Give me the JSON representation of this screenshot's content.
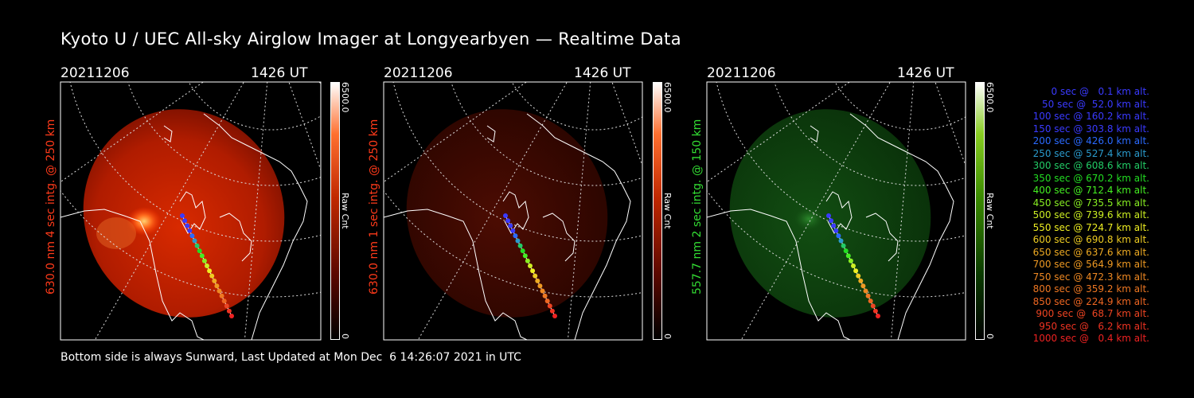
{
  "title": "Kyoto U / UEC All-sky Airglow Imager at Longyearbyen — Realtime Data",
  "footer": "Bottom side is always Sunward, Last Updated at Mon Dec  6 14:26:07 2021 in UTC",
  "panels": [
    {
      "date": "20211206",
      "time": "1426 UT",
      "ylabel": "630.0 nm  4 sec intg. @ 250 km",
      "ylabel_color": "#ff3a1a",
      "cbar_max": "6500.0",
      "cbar_min": "0",
      "cbar_label": "Raw Cnt",
      "cbar_color": "#ff5010",
      "glow_color": "#c42000",
      "glow_opacity": 0.88
    },
    {
      "date": "20211206",
      "time": "1426 UT",
      "ylabel": "630.0 nm  1 sec intg. @ 250 km",
      "ylabel_color": "#ff3a1a",
      "cbar_max": "6500.0",
      "cbar_min": "0",
      "cbar_label": "Raw Cnt",
      "cbar_color": "#ff5010",
      "glow_color": "#4a0a02",
      "glow_opacity": 0.85
    },
    {
      "date": "20211206",
      "time": "1426 UT",
      "ylabel": "557.7 nm  2 sec intg. @ 150 km",
      "ylabel_color": "#33dd33",
      "cbar_max": "6500.0",
      "cbar_min": "0",
      "cbar_label": "Raw Cnt",
      "cbar_color": "#66cc00",
      "glow_color": "#0c4a0c",
      "glow_opacity": 0.9
    }
  ],
  "legend": [
    {
      "text": " 0 sec @   0.1 km alt.",
      "color": "#3a3aff"
    },
    {
      "text": "50 sec @  52.0 km alt.",
      "color": "#3a3aff"
    },
    {
      "text": "100 sec @ 160.2 km alt.",
      "color": "#3a3aff"
    },
    {
      "text": "150 sec @ 303.8 km alt.",
      "color": "#3a3aff"
    },
    {
      "text": "200 sec @ 426.0 km alt.",
      "color": "#2a6aff"
    },
    {
      "text": "250 sec @ 527.4 km alt.",
      "color": "#2a9acc"
    },
    {
      "text": "300 sec @ 608.6 km alt.",
      "color": "#22cc66"
    },
    {
      "text": "350 sec @ 670.2 km alt.",
      "color": "#22dd22"
    },
    {
      "text": "400 sec @ 712.4 km alt.",
      "color": "#44ee22"
    },
    {
      "text": "450 sec @ 735.5 km alt.",
      "color": "#88ee22"
    },
    {
      "text": "500 sec @ 739.6 km alt.",
      "color": "#ccee22"
    },
    {
      "text": "550 sec @ 724.7 km alt.",
      "color": "#eeee22"
    },
    {
      "text": "600 sec @ 690.8 km alt.",
      "color": "#eecc22"
    },
    {
      "text": "650 sec @ 637.6 km alt.",
      "color": "#eeaa22"
    },
    {
      "text": "700 sec @ 564.9 km alt.",
      "color": "#ee9922"
    },
    {
      "text": "750 sec @ 472.3 km alt.",
      "color": "#ee8822"
    },
    {
      "text": "800 sec @ 359.2 km alt.",
      "color": "#ee7722"
    },
    {
      "text": "850 sec @ 224.9 km alt.",
      "color": "#ee6622"
    },
    {
      "text": "900 sec @  68.7 km alt.",
      "color": "#ee4422"
    },
    {
      "text": "950 sec @   6.2 km alt.",
      "color": "#ee3322"
    },
    {
      "text": "1000 sec @   0.4 km alt.",
      "color": "#ee2222"
    }
  ]
}
